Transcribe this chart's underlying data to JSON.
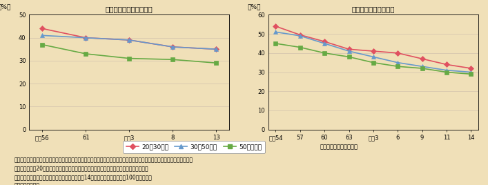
{
  "bg_color": "#f0e0b8",
  "plot_bg_color": "#f0e0b8",
  "left_title": "従業者数の推移（平均）",
  "right_title": "販売額の推移（平均）",
  "ylabel": "（%）",
  "left_xlabels": [
    "昭和56",
    "61",
    "平成3",
    "8",
    "13"
  ],
  "right_xlabels": [
    "昭和54",
    "57",
    "60",
    "63",
    "平成3",
    "6",
    "9",
    "11",
    "14"
  ],
  "left_ylim": [
    0,
    50
  ],
  "right_ylim": [
    0,
    60
  ],
  "left_yticks": [
    0,
    10,
    20,
    30,
    40,
    50
  ],
  "right_yticks": [
    0,
    10,
    20,
    30,
    40,
    50,
    60
  ],
  "series": [
    {
      "label": "20～30万人",
      "color": "#e05060",
      "marker": "D"
    },
    {
      "label": "30～50万人",
      "color": "#6699cc",
      "marker": "^"
    },
    {
      "label": "50万人以上",
      "color": "#66aa44",
      "marker": "s"
    }
  ],
  "left_data": [
    [
      44,
      40,
      39,
      36,
      35
    ],
    [
      41,
      40,
      39,
      36,
      35
    ],
    [
      37,
      33,
      31,
      30.5,
      29
    ]
  ],
  "right_data": [
    [
      54,
      49.5,
      46,
      42,
      41,
      40,
      37,
      34,
      32
    ],
    [
      51,
      49,
      45,
      41,
      38,
      35,
      33,
      31,
      30
    ],
    [
      45,
      43,
      40,
      38,
      35,
      33,
      32,
      30,
      29
    ]
  ],
  "legend_label": "（市全体に対する割合）",
  "note_line1": "（注）１　三大都市圏（東京都、埼玉県、千葉県、神奈川県、愛知県、京都府、大阪府、兵庫県、奈良県）以外の地域におけ",
  "note_line2": "　　　　る人口20万人以上の都市（政令指定都市を除く）を対象として商業統計調査を集計",
  "note_line3": "　　２　過年度の販売額データについては、平成14年度の消費者物価指数を100として補正",
  "note_line4": "資料）国土交通省",
  "line_width": 1.2,
  "marker_size": 4
}
